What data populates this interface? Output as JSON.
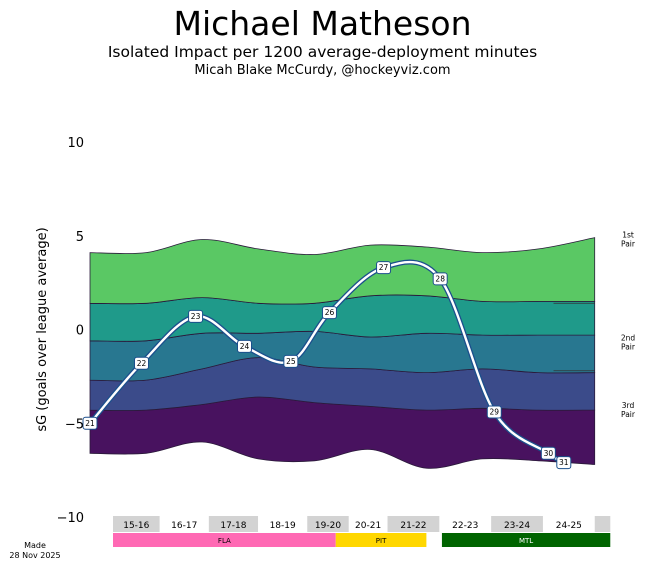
{
  "header": {
    "title": "Michael Matheson",
    "subtitle": "Isolated Impact per 1200 average-deployment minutes",
    "author": "Micah Blake McCurdy, @hockeyviz.com"
  },
  "footer": {
    "made_label": "Made",
    "made_date": "28 Nov 2025"
  },
  "chart_data": {
    "type": "area",
    "title": "Michael Matheson",
    "ylabel": "sG (goals over league average)",
    "xlabel": "",
    "ylim": [
      -10,
      10
    ],
    "yticks": [
      10,
      5,
      0,
      -5,
      -10
    ],
    "x": [
      0,
      1,
      2,
      3,
      4,
      5,
      6,
      7,
      8,
      9
    ],
    "bands": {
      "colors": [
        "#48125f",
        "#3b4b8a",
        "#287790",
        "#1f9a8a",
        "#5ac864"
      ],
      "boundaries": [
        [
          -6.6,
          -6.6,
          -6.0,
          -6.9,
          -7.0,
          -6.4,
          -7.4,
          -6.9,
          -7.0,
          -7.2
        ],
        [
          -4.3,
          -4.3,
          -4.0,
          -3.6,
          -3.9,
          -4.1,
          -4.3,
          -4.2,
          -4.3,
          -4.3
        ],
        [
          -2.7,
          -2.7,
          -2.1,
          -1.5,
          -2.0,
          -2.1,
          -2.3,
          -2.1,
          -2.3,
          -2.3
        ],
        [
          -0.6,
          -0.6,
          -0.2,
          -0.2,
          -0.1,
          -0.4,
          -0.2,
          -0.3,
          -0.3,
          -0.3
        ],
        [
          1.4,
          1.4,
          1.7,
          1.4,
          1.4,
          1.8,
          1.8,
          1.5,
          1.5,
          1.5
        ],
        [
          4.1,
          4.1,
          4.8,
          4.3,
          4.0,
          4.5,
          4.4,
          4.1,
          4.3,
          4.9
        ]
      ]
    },
    "pair_labels": [
      {
        "line1": "1st",
        "line2": "Pair",
        "y": 4.8
      },
      {
        "line1": "2nd",
        "line2": "Pair",
        "y": -0.7
      },
      {
        "line1": "3rd",
        "line2": "Pair",
        "y": -4.3
      }
    ],
    "pair_lines": [
      1.4,
      -2.2
    ],
    "age_series": {
      "ages": [
        "21",
        "22",
        "23",
        "24",
        "25",
        "26",
        "27",
        "28",
        "29",
        "30",
        "31"
      ],
      "x": [
        0.0,
        1.0,
        2.05,
        3.0,
        3.9,
        4.65,
        5.7,
        6.8,
        7.85,
        8.9,
        9.2
      ],
      "y": [
        -5.0,
        -1.8,
        0.7,
        -0.9,
        -1.7,
        0.9,
        3.3,
        2.7,
        -4.4,
        -6.6,
        -7.1
      ]
    },
    "seasons": [
      "15-16",
      "16-17",
      "17-18",
      "18-19",
      "19-20",
      "20-21",
      "21-22",
      "22-23",
      "23-24",
      "24-25"
    ],
    "season_spans": [
      [
        0.0,
        0.9
      ],
      [
        0.9,
        1.85
      ],
      [
        1.85,
        2.8
      ],
      [
        2.8,
        3.75
      ],
      [
        3.75,
        4.55
      ],
      [
        4.55,
        5.3
      ],
      [
        5.3,
        6.3
      ],
      [
        6.3,
        7.3
      ],
      [
        7.3,
        8.3
      ],
      [
        8.3,
        9.3
      ],
      [
        9.3,
        9.6
      ]
    ],
    "teams": [
      {
        "name": "FLA",
        "start": 0.0,
        "end": 4.3,
        "color": "#ff69b4"
      },
      {
        "name": "PIT",
        "start": 4.3,
        "end": 6.05,
        "color": "#ffd700"
      },
      {
        "name": "MTL",
        "start": 6.35,
        "end": 9.6,
        "color": "#006400"
      }
    ]
  }
}
